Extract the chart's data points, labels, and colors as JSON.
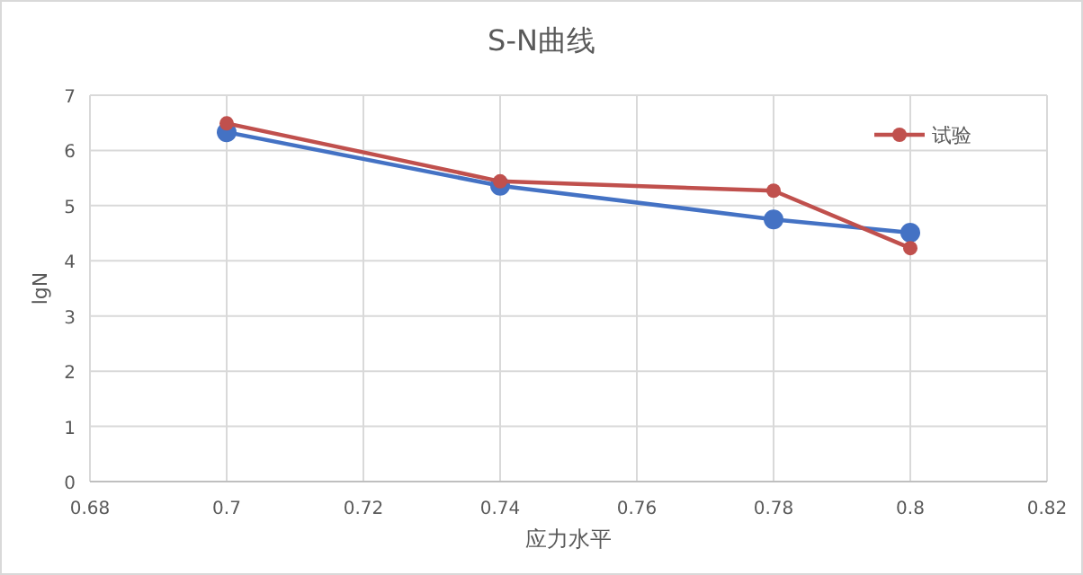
{
  "chart_data": {
    "type": "line",
    "title": "S-N曲线",
    "xlabel": "应力水平",
    "ylabel": "lgN",
    "x": [
      0.7,
      0.74,
      0.78,
      0.8
    ],
    "series": [
      {
        "color": "#4472c4",
        "values": [
          6.33,
          5.36,
          4.75,
          4.51
        ]
      },
      {
        "name": "试验",
        "color": "#c0504d",
        "values": [
          6.49,
          5.44,
          5.27,
          4.23
        ]
      }
    ],
    "xlim": [
      0.68,
      0.82
    ],
    "xticks": [
      0.68,
      0.7,
      0.72,
      0.74,
      0.76,
      0.78,
      0.8,
      0.82
    ],
    "ylim": [
      0,
      7
    ],
    "yticks": [
      0,
      1,
      2,
      3,
      4,
      5,
      6,
      7
    ],
    "grid": true,
    "legend": "top right",
    "marker": "circle"
  }
}
